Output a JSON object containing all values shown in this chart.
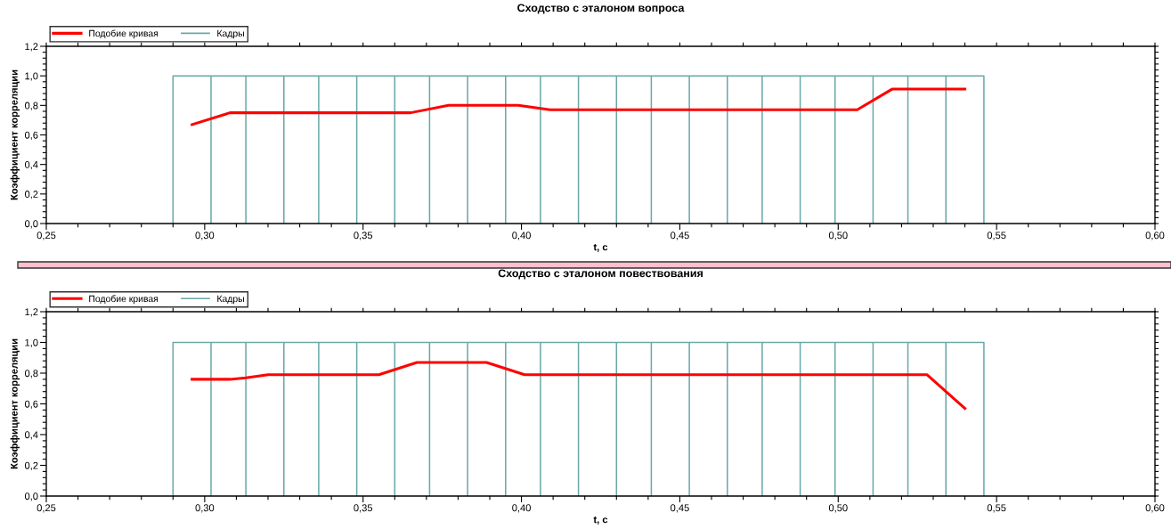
{
  "chart_data": [
    {
      "type": "line",
      "title": "Сходство с эталоном вопроса",
      "xlabel": "t, c",
      "ylabel": "Коэффициент корреляции",
      "series": [
        {
          "name": "Подобие кривая",
          "color": "#ff0000",
          "x": [
            0.296,
            0.308,
            0.365,
            0.377,
            0.399,
            0.409,
            0.506,
            0.517,
            0.54
          ],
          "values": [
            0.67,
            0.75,
            0.75,
            0.8,
            0.8,
            0.77,
            0.77,
            0.91,
            0.91
          ]
        },
        {
          "name": "Кадры",
          "color": "#6aa8a8",
          "x": [
            0.29,
            0.29,
            0.302,
            0.302,
            0.302,
            0.313,
            0.313,
            0.313,
            0.325,
            0.325,
            0.325,
            0.336,
            0.336,
            0.336,
            0.348,
            0.348,
            0.348,
            0.36,
            0.36,
            0.36,
            0.371,
            0.371,
            0.371,
            0.383,
            0.383,
            0.383,
            0.395,
            0.395,
            0.395,
            0.406,
            0.406,
            0.406,
            0.418,
            0.418,
            0.418,
            0.43,
            0.43,
            0.43,
            0.441,
            0.441,
            0.441,
            0.453,
            0.453,
            0.453,
            0.465,
            0.465,
            0.465,
            0.476,
            0.476,
            0.476,
            0.488,
            0.488,
            0.488,
            0.499,
            0.499,
            0.499,
            0.511,
            0.511,
            0.511,
            0.522,
            0.522,
            0.522,
            0.534,
            0.534,
            0.534,
            0.546,
            0.546
          ],
          "values": [
            0,
            1,
            1,
            0,
            1,
            1,
            0,
            1,
            1,
            0,
            1,
            1,
            0,
            1,
            1,
            0,
            1,
            1,
            0,
            1,
            1,
            0,
            1,
            1,
            0,
            1,
            1,
            0,
            1,
            1,
            0,
            1,
            1,
            0,
            1,
            1,
            0,
            1,
            1,
            0,
            1,
            1,
            0,
            1,
            1,
            0,
            1,
            1,
            0,
            1,
            1,
            0,
            1,
            1,
            0,
            1,
            1,
            0,
            1,
            1,
            0,
            1,
            1,
            0,
            1,
            1,
            0
          ]
        }
      ],
      "xlim": [
        0.25,
        0.6
      ],
      "xticks": [
        {
          "value": 0.25,
          "label": "0,25"
        },
        {
          "value": 0.26,
          "label": null
        },
        {
          "value": 0.27,
          "label": null
        },
        {
          "value": 0.28,
          "label": null
        },
        {
          "value": 0.29,
          "label": null
        },
        {
          "value": 0.3,
          "label": "0,30"
        },
        {
          "value": 0.31,
          "label": null
        },
        {
          "value": 0.32,
          "label": null
        },
        {
          "value": 0.33,
          "label": null
        },
        {
          "value": 0.34,
          "label": null
        },
        {
          "value": 0.35,
          "label": "0,35"
        },
        {
          "value": 0.36,
          "label": null
        },
        {
          "value": 0.37,
          "label": null
        },
        {
          "value": 0.38,
          "label": null
        },
        {
          "value": 0.39,
          "label": null
        },
        {
          "value": 0.4,
          "label": "0,40"
        },
        {
          "value": 0.41,
          "label": null
        },
        {
          "value": 0.42,
          "label": null
        },
        {
          "value": 0.43,
          "label": null
        },
        {
          "value": 0.44,
          "label": null
        },
        {
          "value": 0.45,
          "label": "0,45"
        },
        {
          "value": 0.46,
          "label": null
        },
        {
          "value": 0.47,
          "label": null
        },
        {
          "value": 0.48,
          "label": null
        },
        {
          "value": 0.49,
          "label": null
        },
        {
          "value": 0.5,
          "label": "0,50"
        },
        {
          "value": 0.51,
          "label": null
        },
        {
          "value": 0.52,
          "label": null
        },
        {
          "value": 0.53,
          "label": null
        },
        {
          "value": 0.54,
          "label": null
        },
        {
          "value": 0.55,
          "label": "0,55"
        },
        {
          "value": 0.56,
          "label": null
        },
        {
          "value": 0.57,
          "label": null
        },
        {
          "value": 0.58,
          "label": null
        },
        {
          "value": 0.59,
          "label": null
        },
        {
          "value": 0.6,
          "label": "0,60"
        }
      ],
      "ylim": [
        0,
        1.2
      ],
      "yticks": [
        {
          "value": 0,
          "label": "0,0"
        },
        {
          "value": 0.04,
          "label": null
        },
        {
          "value": 0.08,
          "label": null
        },
        {
          "value": 0.12,
          "label": null
        },
        {
          "value": 0.16,
          "label": null
        },
        {
          "value": 0.2,
          "label": "0,2"
        },
        {
          "value": 0.24,
          "label": null
        },
        {
          "value": 0.28,
          "label": null
        },
        {
          "value": 0.32,
          "label": null
        },
        {
          "value": 0.36,
          "label": null
        },
        {
          "value": 0.4,
          "label": "0,4"
        },
        {
          "value": 0.44,
          "label": null
        },
        {
          "value": 0.48,
          "label": null
        },
        {
          "value": 0.52,
          "label": null
        },
        {
          "value": 0.56,
          "label": null
        },
        {
          "value": 0.6,
          "label": "0,6"
        },
        {
          "value": 0.64,
          "label": null
        },
        {
          "value": 0.68,
          "label": null
        },
        {
          "value": 0.72,
          "label": null
        },
        {
          "value": 0.76,
          "label": null
        },
        {
          "value": 0.8,
          "label": "0,8"
        },
        {
          "value": 0.84,
          "label": null
        },
        {
          "value": 0.88,
          "label": null
        },
        {
          "value": 0.92,
          "label": null
        },
        {
          "value": 0.96,
          "label": null
        },
        {
          "value": 1.0,
          "label": "1,0"
        },
        {
          "value": 1.04,
          "label": null
        },
        {
          "value": 1.08,
          "label": null
        },
        {
          "value": 1.12,
          "label": null
        },
        {
          "value": 1.16,
          "label": null
        },
        {
          "value": 1.2,
          "label": "1,2"
        }
      ],
      "grid": false,
      "legend": "top left",
      "marker": "none",
      "line_style": "solid"
    },
    {
      "type": "line",
      "title": "Сходство с эталоном повествования",
      "xlabel": "t, c",
      "ylabel": "Коэффициент корреляции",
      "series": [
        {
          "name": "Подобие кривая",
          "color": "#ff0000",
          "x": [
            0.296,
            0.308,
            0.313,
            0.32,
            0.355,
            0.367,
            0.389,
            0.401,
            0.528,
            0.54
          ],
          "values": [
            0.76,
            0.76,
            0.77,
            0.79,
            0.79,
            0.87,
            0.87,
            0.79,
            0.79,
            0.57
          ]
        },
        {
          "name": "Кадры",
          "color": "#6aa8a8",
          "x": [
            0.29,
            0.29,
            0.302,
            0.302,
            0.302,
            0.313,
            0.313,
            0.313,
            0.325,
            0.325,
            0.325,
            0.336,
            0.336,
            0.336,
            0.348,
            0.348,
            0.348,
            0.36,
            0.36,
            0.36,
            0.371,
            0.371,
            0.371,
            0.383,
            0.383,
            0.383,
            0.395,
            0.395,
            0.395,
            0.406,
            0.406,
            0.406,
            0.418,
            0.418,
            0.418,
            0.43,
            0.43,
            0.43,
            0.441,
            0.441,
            0.441,
            0.453,
            0.453,
            0.453,
            0.465,
            0.465,
            0.465,
            0.476,
            0.476,
            0.476,
            0.488,
            0.488,
            0.488,
            0.499,
            0.499,
            0.499,
            0.511,
            0.511,
            0.511,
            0.522,
            0.522,
            0.522,
            0.534,
            0.534,
            0.534,
            0.546,
            0.546
          ],
          "values": [
            0,
            1,
            1,
            0,
            1,
            1,
            0,
            1,
            1,
            0,
            1,
            1,
            0,
            1,
            1,
            0,
            1,
            1,
            0,
            1,
            1,
            0,
            1,
            1,
            0,
            1,
            1,
            0,
            1,
            1,
            0,
            1,
            1,
            0,
            1,
            1,
            0,
            1,
            1,
            0,
            1,
            1,
            0,
            1,
            1,
            0,
            1,
            1,
            0,
            1,
            1,
            0,
            1,
            1,
            0,
            1,
            1,
            0,
            1,
            1,
            0,
            1,
            1,
            0,
            1,
            1,
            0
          ]
        }
      ],
      "xlim": [
        0.25,
        0.6
      ],
      "xticks": [
        {
          "value": 0.25,
          "label": "0,25"
        },
        {
          "value": 0.26,
          "label": null
        },
        {
          "value": 0.27,
          "label": null
        },
        {
          "value": 0.28,
          "label": null
        },
        {
          "value": 0.29,
          "label": null
        },
        {
          "value": 0.3,
          "label": "0,30"
        },
        {
          "value": 0.31,
          "label": null
        },
        {
          "value": 0.32,
          "label": null
        },
        {
          "value": 0.33,
          "label": null
        },
        {
          "value": 0.34,
          "label": null
        },
        {
          "value": 0.35,
          "label": "0,35"
        },
        {
          "value": 0.36,
          "label": null
        },
        {
          "value": 0.37,
          "label": null
        },
        {
          "value": 0.38,
          "label": null
        },
        {
          "value": 0.39,
          "label": null
        },
        {
          "value": 0.4,
          "label": "0,40"
        },
        {
          "value": 0.41,
          "label": null
        },
        {
          "value": 0.42,
          "label": null
        },
        {
          "value": 0.43,
          "label": null
        },
        {
          "value": 0.44,
          "label": null
        },
        {
          "value": 0.45,
          "label": "0,45"
        },
        {
          "value": 0.46,
          "label": null
        },
        {
          "value": 0.47,
          "label": null
        },
        {
          "value": 0.48,
          "label": null
        },
        {
          "value": 0.49,
          "label": null
        },
        {
          "value": 0.5,
          "label": "0,50"
        },
        {
          "value": 0.51,
          "label": null
        },
        {
          "value": 0.52,
          "label": null
        },
        {
          "value": 0.53,
          "label": null
        },
        {
          "value": 0.54,
          "label": null
        },
        {
          "value": 0.55,
          "label": "0,55"
        },
        {
          "value": 0.56,
          "label": null
        },
        {
          "value": 0.57,
          "label": null
        },
        {
          "value": 0.58,
          "label": null
        },
        {
          "value": 0.59,
          "label": null
        },
        {
          "value": 0.6,
          "label": "0,60"
        }
      ],
      "ylim": [
        0,
        1.2
      ],
      "yticks": [
        {
          "value": 0,
          "label": "0,0"
        },
        {
          "value": 0.04,
          "label": null
        },
        {
          "value": 0.08,
          "label": null
        },
        {
          "value": 0.12,
          "label": null
        },
        {
          "value": 0.16,
          "label": null
        },
        {
          "value": 0.2,
          "label": "0,2"
        },
        {
          "value": 0.24,
          "label": null
        },
        {
          "value": 0.28,
          "label": null
        },
        {
          "value": 0.32,
          "label": null
        },
        {
          "value": 0.36,
          "label": null
        },
        {
          "value": 0.4,
          "label": "0,4"
        },
        {
          "value": 0.44,
          "label": null
        },
        {
          "value": 0.48,
          "label": null
        },
        {
          "value": 0.52,
          "label": null
        },
        {
          "value": 0.56,
          "label": null
        },
        {
          "value": 0.6,
          "label": "0,6"
        },
        {
          "value": 0.64,
          "label": null
        },
        {
          "value": 0.68,
          "label": null
        },
        {
          "value": 0.72,
          "label": null
        },
        {
          "value": 0.76,
          "label": null
        },
        {
          "value": 0.8,
          "label": "0,8"
        },
        {
          "value": 0.84,
          "label": null
        },
        {
          "value": 0.88,
          "label": null
        },
        {
          "value": 0.92,
          "label": null
        },
        {
          "value": 0.96,
          "label": null
        },
        {
          "value": 1.0,
          "label": "1,0"
        },
        {
          "value": 1.04,
          "label": null
        },
        {
          "value": 1.08,
          "label": null
        },
        {
          "value": 1.12,
          "label": null
        },
        {
          "value": 1.16,
          "label": null
        },
        {
          "value": 1.2,
          "label": "1,2"
        }
      ],
      "grid": false,
      "legend": "top left",
      "marker": "none",
      "line_style": "solid"
    }
  ]
}
